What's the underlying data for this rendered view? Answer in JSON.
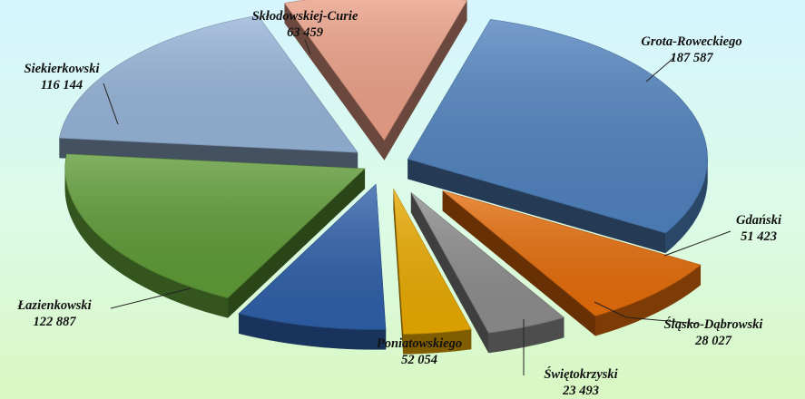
{
  "chart_data": {
    "type": "pie",
    "title": "",
    "series": [
      {
        "values": [
          187587,
          51423,
          28027,
          23493,
          52054,
          122887,
          116144,
          63459
        ]
      }
    ],
    "categories": [
      "Grota-Roweckiego",
      "Gdański",
      "Śląsko-Dąbrowski",
      "Świętokrzyski",
      "Poniatowskiego",
      "Łazienkowski",
      "Siekierkowski",
      "Skłodowskiej-Curie"
    ],
    "value_labels": [
      "187 587",
      "51 423",
      "28 027",
      "23 493",
      "52 054",
      "122 887",
      "116 144",
      "63 459"
    ],
    "colors": [
      "#4f81bd",
      "#e46c0a",
      "#8c8c8c",
      "#e8a900",
      "#2e5fa8",
      "#5e9a36",
      "#95b3d7",
      "#eba087"
    ],
    "exploded": true,
    "legend": "none",
    "data_labels": "category name and value, outside with leader lines"
  }
}
